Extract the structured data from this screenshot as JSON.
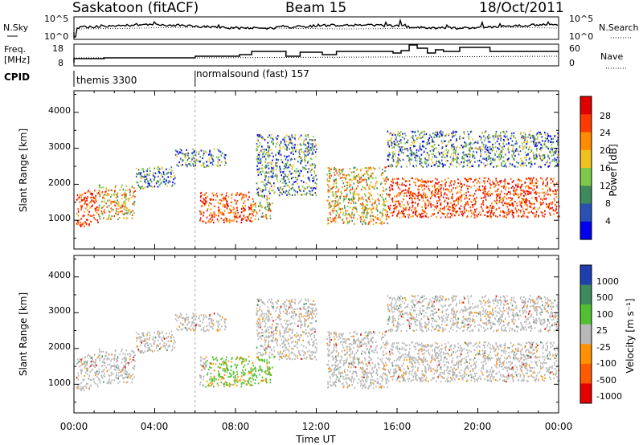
{
  "header": {
    "station": "Saskatoon (fitACF)",
    "beam": "Beam 15",
    "date": "18/Oct/2011"
  },
  "noise_panel": {
    "left_label": "N.Sky",
    "right_label": "N.Search",
    "left_ticks": [
      "10^5",
      "10^0"
    ],
    "right_ticks": [
      "10^5",
      "10^0"
    ]
  },
  "freq_panel": {
    "left_label_1": "Freq.",
    "left_label_2": "[MHz]",
    "left_ticks": [
      "18",
      "8"
    ],
    "right_label": "Nave",
    "right_ticks": [
      "60",
      "0"
    ]
  },
  "cpid": {
    "label": "CPID",
    "modes": [
      {
        "name": "themis 3300",
        "start": "00:00"
      },
      {
        "name": "normalsound (fast) 157",
        "start": "06:00"
      }
    ]
  },
  "power_panel": {
    "ylabel": "Slant Range [km]",
    "yticks": [
      "4000",
      "3000",
      "2000",
      "1000"
    ],
    "colorbar_label": "Power [dB]",
    "colorbar_ticks": [
      "28",
      "24",
      "20",
      "16",
      "12",
      "8",
      "4"
    ],
    "colors": [
      "#0000ee",
      "#2a4fb5",
      "#3f8a5a",
      "#7ec84a",
      "#f0c020",
      "#ff8c00",
      "#ff3a00",
      "#e00000"
    ]
  },
  "velocity_panel": {
    "ylabel": "Slant Range [km]",
    "yticks": [
      "4000",
      "3000",
      "2000",
      "1000"
    ],
    "colorbar_label": "Velocity [m s⁻¹]",
    "colorbar_ticks": [
      "1000",
      "500",
      "100",
      "25",
      "-25",
      "-100",
      "-500",
      "-1000"
    ],
    "colors": [
      "#1f3fb0",
      "#3f8a5a",
      "#50c030",
      "#b8b8b8",
      "#ff9000",
      "#ff5a00",
      "#e80000"
    ]
  },
  "x_axis": {
    "label": "Time UT",
    "ticks": [
      "00:00",
      "04:00",
      "08:00",
      "12:00",
      "16:00",
      "20:00",
      "00:00"
    ]
  },
  "chart_data": {
    "type": "heatmap",
    "title": "Saskatoon (fitACF) Beam 15 18/Oct/2011",
    "xlabel": "Time UT",
    "ylabel": "Slant Range [km]",
    "xlim_hours": [
      0,
      24
    ],
    "ylim_km": [
      200,
      4600
    ],
    "cpid_change_hour": 6,
    "power_db_range": [
      0,
      30
    ],
    "velocity_range": [
      -1000,
      1000
    ],
    "power_scatter_regions": [
      {
        "t0": 0.1,
        "t1": 1.2,
        "r0": 850,
        "r1": 1850,
        "level": "high"
      },
      {
        "t0": 1.2,
        "t1": 3.0,
        "r0": 1050,
        "r1": 2000,
        "level": "mid"
      },
      {
        "t0": 3.0,
        "t1": 5.0,
        "r0": 1900,
        "r1": 2500,
        "level": "low"
      },
      {
        "t0": 5.0,
        "t1": 7.5,
        "r0": 2500,
        "r1": 3000,
        "level": "low"
      },
      {
        "t0": 6.2,
        "t1": 8.8,
        "r0": 950,
        "r1": 1800,
        "level": "high"
      },
      {
        "t0": 8.8,
        "t1": 9.8,
        "r0": 1050,
        "r1": 1700,
        "level": "mid"
      },
      {
        "t0": 9.0,
        "t1": 12.0,
        "r0": 1700,
        "r1": 3400,
        "level": "low"
      },
      {
        "t0": 12.5,
        "t1": 15.5,
        "r0": 900,
        "r1": 2500,
        "level": "mid"
      },
      {
        "t0": 15.5,
        "t1": 24.0,
        "r0": 1100,
        "r1": 2200,
        "level": "high"
      },
      {
        "t0": 15.5,
        "t1": 24.0,
        "r0": 2500,
        "r1": 3500,
        "level": "low"
      }
    ]
  }
}
